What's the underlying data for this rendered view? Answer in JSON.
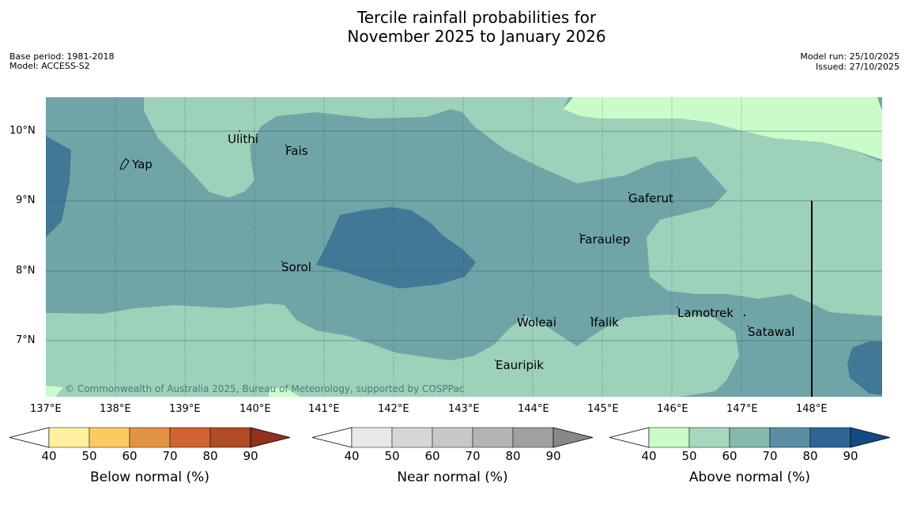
{
  "title": {
    "line1": "Tercile rainfall probabilities for",
    "line2": "November 2025 to January 2026"
  },
  "meta_left": {
    "base_period": "Base period: 1981-2018",
    "model": "Model: ACCESS-S2"
  },
  "meta_right": {
    "model_run": "Model run: 25/10/2025",
    "issued": "Issued: 27/10/2025"
  },
  "copyright": "© Commonwealth of Australia 2025, Bureau of Meteorology, supported by COSPPac",
  "lon_ticks": [
    "137°E",
    "138°E",
    "139°E",
    "140°E",
    "141°E",
    "142°E",
    "143°E",
    "144°E",
    "145°E",
    "146°E",
    "147°E",
    "148°E"
  ],
  "lat_ticks": [
    "10°N",
    "9°N",
    "8°N",
    "7°N"
  ],
  "places": [
    {
      "name": "Ulithi"
    },
    {
      "name": "Fais"
    },
    {
      "name": "Yap"
    },
    {
      "name": "Gaferut"
    },
    {
      "name": "Faraulep"
    },
    {
      "name": "Sorol"
    },
    {
      "name": "Lamotrek"
    },
    {
      "name": "Satawal"
    },
    {
      "name": "Woleai"
    },
    {
      "name": "Ifalik"
    },
    {
      "name": "Eauripik"
    }
  ],
  "colorbars": [
    {
      "label": "Below normal (%)",
      "ticks": [
        "40",
        "50",
        "60",
        "70",
        "80",
        "90"
      ],
      "colors": [
        "#fff0a0",
        "#fdca62",
        "#e29444",
        "#cf6432",
        "#b04b25",
        "#93301f"
      ]
    },
    {
      "label": "Near normal (%)",
      "ticks": [
        "40",
        "50",
        "60",
        "70",
        "80",
        "90"
      ],
      "colors": [
        "#e8e8e8",
        "#d6d6d6",
        "#c8c8c8",
        "#b4b4b4",
        "#a0a0a0",
        "#888888"
      ]
    },
    {
      "label": "Above normal (%)",
      "ticks": [
        "40",
        "50",
        "60",
        "70",
        "80",
        "90"
      ],
      "colors": [
        "#c9fcc9",
        "#a6d8bd",
        "#84b9ac",
        "#5b8ea3",
        "#2e6596",
        "#144b86"
      ]
    }
  ],
  "colors": {
    "map_light": "#c9fcc9",
    "map_mid": "#9ed1ba",
    "map_teal": "#6fa5a7",
    "map_dark": "#417896"
  }
}
